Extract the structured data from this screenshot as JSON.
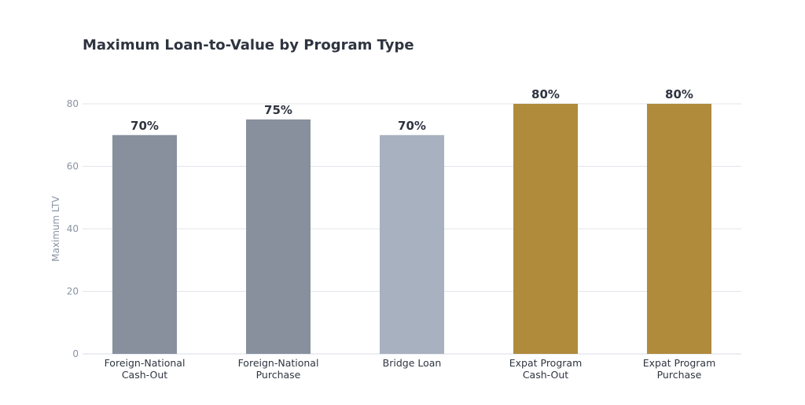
{
  "chart_data": {
    "type": "bar",
    "title": "Maximum Loan-to-Value by Program Type",
    "xlabel": "",
    "ylabel": "Maximum LTV",
    "ylim": [
      0,
      80
    ],
    "yticks": [
      0,
      20,
      40,
      60,
      80
    ],
    "grid": true,
    "categories": [
      [
        "Foreign-National",
        "Cash-Out"
      ],
      [
        "Foreign-National",
        "Purchase"
      ],
      [
        "Bridge Loan"
      ],
      [
        "Expat Program",
        "Cash-Out"
      ],
      [
        "Expat Program",
        "Purchase"
      ]
    ],
    "values": [
      70,
      75,
      70,
      80,
      80
    ],
    "value_labels": [
      "70%",
      "75%",
      "70%",
      "80%",
      "80%"
    ],
    "colors": [
      "#88909e",
      "#88909e",
      "#a8b1bf",
      "#b08b3c",
      "#b08b3c"
    ]
  }
}
